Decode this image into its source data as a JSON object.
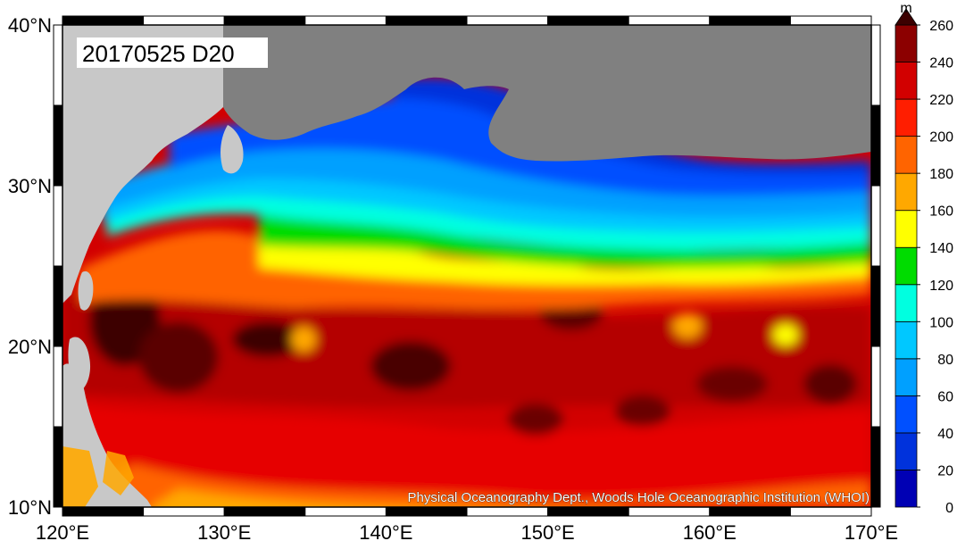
{
  "map": {
    "title": "20170525 D20",
    "credit": "Physical Oceanography Dept., Woods Hole Oceanographic Institution (WHOI)",
    "lon_range": [
      120,
      170
    ],
    "lat_range": [
      10,
      40
    ],
    "lon_ticks": [
      "120°E",
      "130°E",
      "140°E",
      "150°E",
      "160°E",
      "170°E"
    ],
    "lat_ticks": [
      "10°N",
      "20°N",
      "30°N",
      "40°N"
    ],
    "land_color": "#808080",
    "foreign_land_color": "#c8c8c8"
  },
  "colorbar": {
    "unit": "m",
    "labels": [
      "0",
      "20",
      "40",
      "60",
      "80",
      "100",
      "120",
      "140",
      "160",
      "180",
      "200",
      "220",
      "240",
      "260"
    ],
    "colors": [
      "#0000b4",
      "#0032dc",
      "#0050ff",
      "#00a0ff",
      "#00c8ff",
      "#00ffe0",
      "#00dc00",
      "#ffff00",
      "#ffa800",
      "#ff6400",
      "#ff1e00",
      "#d20000",
      "#8c0000",
      "#3c0000"
    ]
  }
}
